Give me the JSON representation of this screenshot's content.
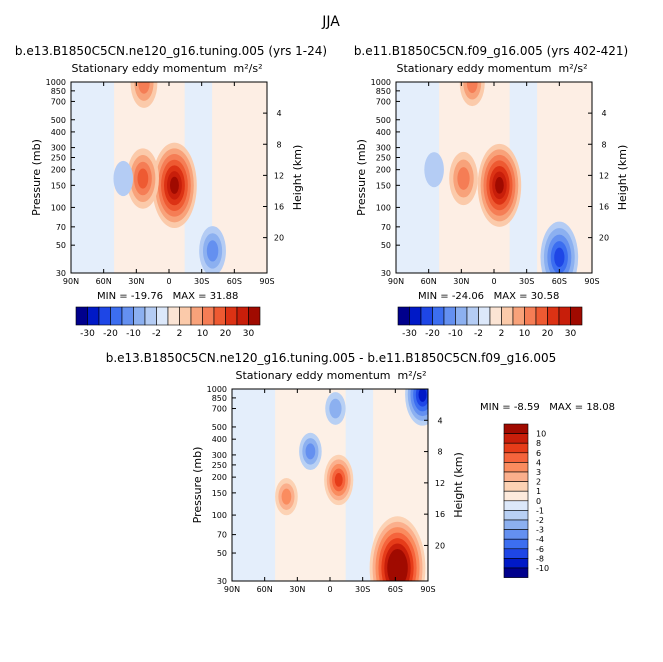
{
  "figure": {
    "suptitle": "JJA"
  },
  "panels": [
    {
      "title": "b.e13.B1850C5CN.ne120_g16.tuning.005 (yrs 1-24)",
      "subtitle": "Stationary eddy momentum",
      "units": "m²/s²",
      "min_label": "MIN =",
      "min": "-19.76",
      "max_label": "MAX =",
      "max": "31.88"
    },
    {
      "title": "b.e11.B1850C5CN.f09_g16.005 (yrs 402-421)",
      "subtitle": "Stationary eddy momentum",
      "units": "m²/s²",
      "min_label": "MIN =",
      "min": "-24.06",
      "max_label": "MAX =",
      "max": "30.58"
    },
    {
      "title": "b.e13.B1850C5CN.ne120_g16.tuning.005 - b.e11.B1850C5CN.f09_g16.005",
      "subtitle": "Stationary eddy momentum",
      "units": "m²/s²",
      "min_label": "MIN =",
      "min": "-8.59",
      "max_label": "MAX =",
      "max": "18.08"
    }
  ],
  "axes": {
    "ylabel": "Pressure (mb)",
    "y2label": "Height (km)",
    "lat_ticks": [
      "90N",
      "60N",
      "30N",
      "0",
      "30S",
      "60S",
      "90S"
    ],
    "pressure_ticks": [
      "30",
      "50",
      "70",
      "100",
      "150",
      "200",
      "250",
      "300",
      "400",
      "500",
      "700",
      "850",
      "1000"
    ],
    "height_ticks": [
      "4",
      "8",
      "12",
      "16",
      "20"
    ]
  },
  "colorbars": {
    "top_labels": [
      "-30",
      "-20",
      "-10",
      "-2",
      "2",
      "10",
      "20",
      "30"
    ],
    "diff_labels": [
      "10",
      "8",
      "6",
      "4",
      "3",
      "2",
      "1",
      "0",
      "-1",
      "-2",
      "-3",
      "-4",
      "-6",
      "-8",
      "-10"
    ]
  },
  "colors": {
    "top_scale": [
      "#00008c",
      "#0019c7",
      "#1e46e6",
      "#3c6ef0",
      "#6490f0",
      "#8cb0f0",
      "#b4ccf4",
      "#dce8fa",
      "#fbe4d4",
      "#fbcaaa",
      "#f8a27a",
      "#f57d55",
      "#ee5a32",
      "#dc3214",
      "#c81e0a",
      "#a00a00"
    ],
    "diff_scale": [
      "#a00a00",
      "#c81e0a",
      "#e63c19",
      "#f5643c",
      "#fa8c5f",
      "#fbaf8c",
      "#fcd2b4",
      "#fdeadc",
      "#dce8fa",
      "#b8d0f4",
      "#8cb0f0",
      "#6490f0",
      "#3c6ef0",
      "#1e46e6",
      "#0019c7",
      "#00008c"
    ]
  },
  "chart_data": [
    {
      "type": "heatmap",
      "title": "b.e13.B1850C5CN.ne120_g16.tuning.005 (yrs 1-24)",
      "subtitle": "Stationary eddy momentum m²/s²",
      "xlabel": "",
      "ylabel": "Pressure (mb)",
      "y2label": "Height (km)",
      "x_ticks": [
        "90N",
        "60N",
        "30N",
        "0",
        "30S",
        "60S",
        "90S"
      ],
      "xlim": [
        90,
        -90
      ],
      "ylim": [
        1000,
        30
      ],
      "y_scale": "log",
      "levels": [
        -30,
        -20,
        -10,
        -2,
        2,
        10,
        20,
        30
      ],
      "min": -19.76,
      "max": 31.88,
      "features": [
        {
          "lat": -5,
          "p": 150,
          "value": 31.88,
          "sign": "positive"
        },
        {
          "lat": 24,
          "p": 170,
          "value": 18,
          "sign": "positive"
        },
        {
          "lat": 23,
          "p": 980,
          "value": 12,
          "sign": "positive"
        },
        {
          "lat": -40,
          "p": 45,
          "value": -12,
          "sign": "negative"
        },
        {
          "lat": 42,
          "p": 170,
          "value": -4,
          "sign": "negative"
        }
      ]
    },
    {
      "type": "heatmap",
      "title": "b.e11.B1850C5CN.f09_g16.005 (yrs 402-421)",
      "subtitle": "Stationary eddy momentum m²/s²",
      "xlabel": "",
      "ylabel": "Pressure (mb)",
      "y2label": "Height (km)",
      "x_ticks": [
        "90N",
        "60N",
        "30N",
        "0",
        "30S",
        "60S",
        "90S"
      ],
      "xlim": [
        90,
        -90
      ],
      "ylim": [
        1000,
        30
      ],
      "y_scale": "log",
      "levels": [
        -30,
        -20,
        -10,
        -2,
        2,
        10,
        20,
        30
      ],
      "min": -24.06,
      "max": 30.58,
      "features": [
        {
          "lat": -5,
          "p": 150,
          "value": 30.58,
          "sign": "positive"
        },
        {
          "lat": 28,
          "p": 170,
          "value": 14,
          "sign": "positive"
        },
        {
          "lat": 20,
          "p": 980,
          "value": 10,
          "sign": "positive"
        },
        {
          "lat": -60,
          "p": 40,
          "value": -24.06,
          "sign": "negative"
        },
        {
          "lat": 55,
          "p": 200,
          "value": -4,
          "sign": "negative"
        }
      ]
    },
    {
      "type": "heatmap",
      "title": "b.e13.B1850C5CN.ne120_g16.tuning.005 - b.e11.B1850C5CN.f09_g16.005",
      "subtitle": "Stationary eddy momentum m²/s²",
      "xlabel": "",
      "ylabel": "Pressure (mb)",
      "y2label": "Height (km)",
      "x_ticks": [
        "90N",
        "60N",
        "30N",
        "0",
        "30S",
        "60S",
        "90S"
      ],
      "xlim": [
        90,
        -90
      ],
      "ylim": [
        1000,
        30
      ],
      "y_scale": "log",
      "levels": [
        -10,
        -8,
        -6,
        -4,
        -3,
        -2,
        -1,
        0,
        1,
        2,
        3,
        4,
        6,
        8,
        10
      ],
      "min": -8.59,
      "max": 18.08,
      "features": [
        {
          "lat": -62,
          "p": 38,
          "value": 18.08,
          "sign": "positive"
        },
        {
          "lat": -8,
          "p": 190,
          "value": 6,
          "sign": "positive"
        },
        {
          "lat": 40,
          "p": 140,
          "value": 3,
          "sign": "positive"
        },
        {
          "lat": 18,
          "p": 320,
          "value": -3,
          "sign": "negative"
        },
        {
          "lat": -5,
          "p": 700,
          "value": -2,
          "sign": "negative"
        },
        {
          "lat": -85,
          "p": 900,
          "value": -8.59,
          "sign": "negative"
        }
      ]
    }
  ]
}
